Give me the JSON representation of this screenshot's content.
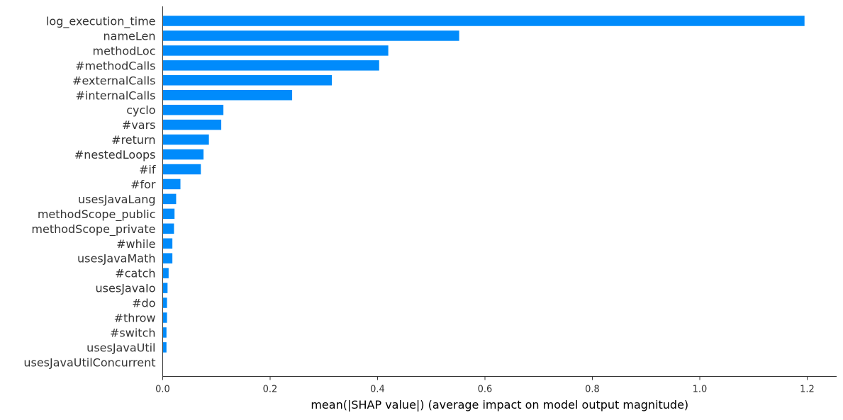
{
  "chart_data": {
    "type": "bar",
    "orientation": "horizontal",
    "categories": [
      "log_execution_time",
      "nameLen",
      "methodLoc",
      "#methodCalls",
      "#externalCalls",
      "#internalCalls",
      "cyclo",
      "#vars",
      "#return",
      "#nestedLoops",
      "#if",
      "#for",
      "usesJavaLang",
      "methodScope_public",
      "methodScope_private",
      "#while",
      "usesJavaMath",
      "#catch",
      "usesJavaIo",
      "#do",
      "#throw",
      "#switch",
      "usesJavaUtil",
      "usesJavaUtilConcurrent"
    ],
    "values": [
      1.195,
      0.552,
      0.42,
      0.403,
      0.315,
      0.241,
      0.113,
      0.109,
      0.086,
      0.076,
      0.071,
      0.033,
      0.025,
      0.022,
      0.021,
      0.018,
      0.018,
      0.011,
      0.009,
      0.008,
      0.008,
      0.007,
      0.007,
      0.0
    ],
    "title": "",
    "xlabel": "mean(|SHAP value|) (average impact on model output magnitude)",
    "ylabel": "",
    "xlim": [
      0.0,
      1.25
    ],
    "xticks": [
      0.0,
      0.2,
      0.4,
      0.6,
      0.8,
      1.0,
      1.2
    ],
    "xtick_labels": [
      "0.0",
      "0.2",
      "0.4",
      "0.6",
      "0.8",
      "1.0",
      "1.2"
    ],
    "bar_color": "#008bfb",
    "grid": false,
    "legend": "none"
  }
}
